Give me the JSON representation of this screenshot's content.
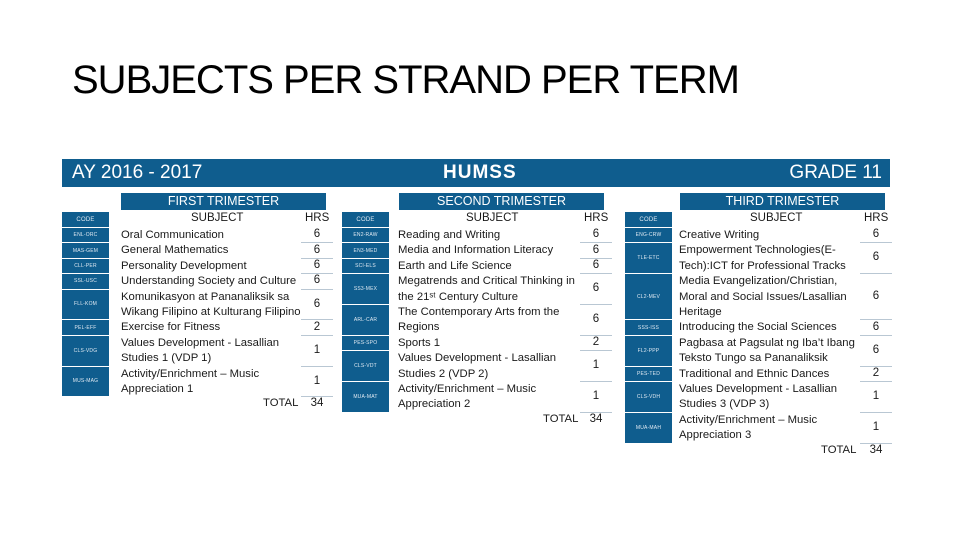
{
  "title": "SUBJECTS PER STRAND PER TERM",
  "banner": {
    "ay": "AY 2016 - 2017",
    "strand": "HUMSS",
    "grade": "GRADE 11"
  },
  "terms": [
    {
      "label": "FIRST TRIMESTER",
      "code_header": "CODE",
      "subject_header": "SUBJECT",
      "hrs_header": "HRS",
      "codes": [
        "ENL-ORC",
        "MAS-GEM",
        "CLL-PER",
        "SSL-USC",
        "FLL-KOM",
        "PEL-EFF",
        "CLS-VDG",
        "MUS-MAG"
      ],
      "subject_lines": [
        "Oral Communication",
        "General Mathematics",
        "Personality Development",
        "Understanding Society and Culture",
        "Komunikasyon at Pananaliksik sa",
        "Wikang Filipino at Kulturang Filipino",
        "Exercise for Fitness",
        "Values Development - Lasallian",
        "Studies 1 (VDP 1)",
        "Activity/Enrichment – Music",
        "Appreciation 1"
      ],
      "hours": [
        "6",
        "6",
        "6",
        "6",
        "6",
        "2",
        "1",
        "1"
      ],
      "total_label": "TOTAL",
      "total": "34"
    },
    {
      "label": "SECOND TRIMESTER",
      "code_header": "CODE",
      "subject_header": "SUBJECT",
      "hrs_header": "HRS",
      "codes": [
        "EN2-RAW",
        "EN3-MED",
        "SCI-ELS",
        "SS3-MEX",
        "ARL-CAR",
        "PES-SPO",
        "CLS-VDT",
        "MUA-MAT"
      ],
      "subject_lines": [
        "Reading and Writing",
        "Media and Information Literacy",
        "Earth and Life Science",
        "Megatrends and Critical Thinking in",
        "the 21ˢᵗ Century Culture",
        "The Contemporary Arts from the",
        "Regions",
        "Sports 1",
        "Values Development - Lasallian",
        "Studies 2 (VDP 2)",
        "Activity/Enrichment – Music",
        "Appreciation 2"
      ],
      "hours": [
        "6",
        "6",
        "6",
        "6",
        "6",
        "2",
        "1",
        "1"
      ],
      "total_label": "TOTAL",
      "total": "34"
    },
    {
      "label": "THIRD TRIMESTER",
      "code_header": "CODE",
      "subject_header": "SUBJECT",
      "hrs_header": "HRS",
      "codes": [
        "ENG-CRW",
        "TLE-ETC",
        "CL2-MEV",
        "SSS-ISS",
        "FL2-PPP",
        "PES-TED",
        "CLS-VDH",
        "MUA-MAH"
      ],
      "subject_lines": [
        "Creative Writing",
        "Empowerment Technologies(E-",
        "Tech):ICT for Professional Tracks",
        "Media Evangelization/Christian,",
        "Moral and Social Issues/Lasallian",
        "Heritage",
        "Introducing the Social Sciences",
        "Pagbasa at Pagsulat ng Iba’t Ibang",
        "Teksto Tungo sa Pananaliksik",
        "Traditional and Ethnic Dances",
        "Values Development - Lasallian",
        "Studies 3 (VDP 3)",
        "Activity/Enrichment – Music",
        "Appreciation 3"
      ],
      "hours": [
        "6",
        "6",
        "6",
        "6",
        "6",
        "2",
        "1",
        "1"
      ],
      "total_label": "TOTAL",
      "total": "34"
    }
  ]
}
